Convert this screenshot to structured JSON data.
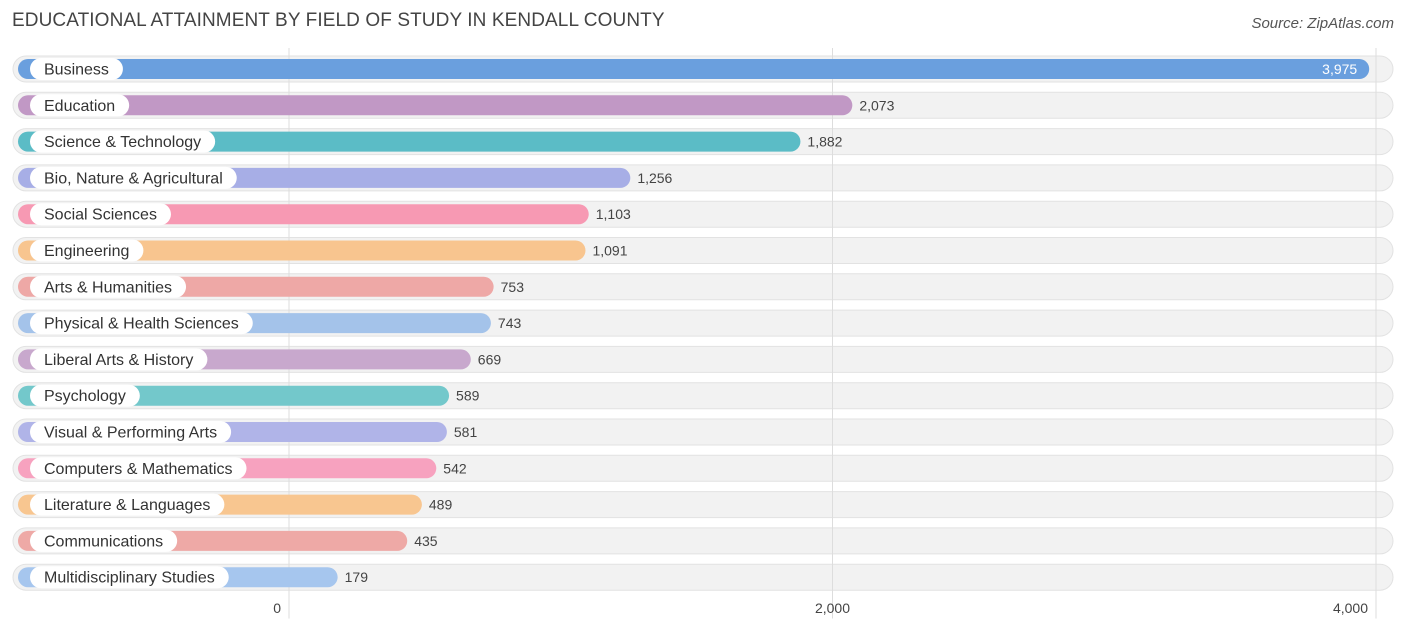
{
  "header": {
    "title": "EDUCATIONAL ATTAINMENT BY FIELD OF STUDY IN KENDALL COUNTY",
    "source": "Source: ZipAtlas.com"
  },
  "chart_data": {
    "type": "bar",
    "orientation": "horizontal",
    "title": "EDUCATIONAL ATTAINMENT BY FIELD OF STUDY IN KENDALL COUNTY",
    "xlabel": "",
    "ylabel": "",
    "xlim": [
      0,
      4000
    ],
    "grid": true,
    "ticks": [
      {
        "value": 0,
        "label": "0"
      },
      {
        "value": 2000,
        "label": "2,000"
      },
      {
        "value": 4000,
        "label": "4,000"
      }
    ],
    "categories": [
      "Business",
      "Education",
      "Science & Technology",
      "Bio, Nature & Agricultural",
      "Social Sciences",
      "Engineering",
      "Arts & Humanities",
      "Physical & Health Sciences",
      "Liberal Arts & History",
      "Psychology",
      "Visual & Performing Arts",
      "Computers & Mathematics",
      "Literature & Languages",
      "Communications",
      "Multidisciplinary Studies"
    ],
    "values": [
      3975,
      2073,
      1882,
      1256,
      1103,
      1091,
      753,
      743,
      669,
      589,
      581,
      542,
      489,
      435,
      179
    ],
    "value_labels": [
      "3,975",
      "2,073",
      "1,882",
      "1,256",
      "1,103",
      "1,091",
      "753",
      "743",
      "669",
      "589",
      "581",
      "542",
      "489",
      "435",
      "179"
    ],
    "colors": [
      "#6a9fde",
      "#c198c5",
      "#5bbcc6",
      "#a7aee6",
      "#f799b3",
      "#f8c58f",
      "#eea8a6",
      "#a4c3ea",
      "#c8a8cd",
      "#73c8cb",
      "#b0b4e8",
      "#f7a2bf",
      "#f8c690",
      "#eea9a6",
      "#a6c6ee"
    ]
  }
}
